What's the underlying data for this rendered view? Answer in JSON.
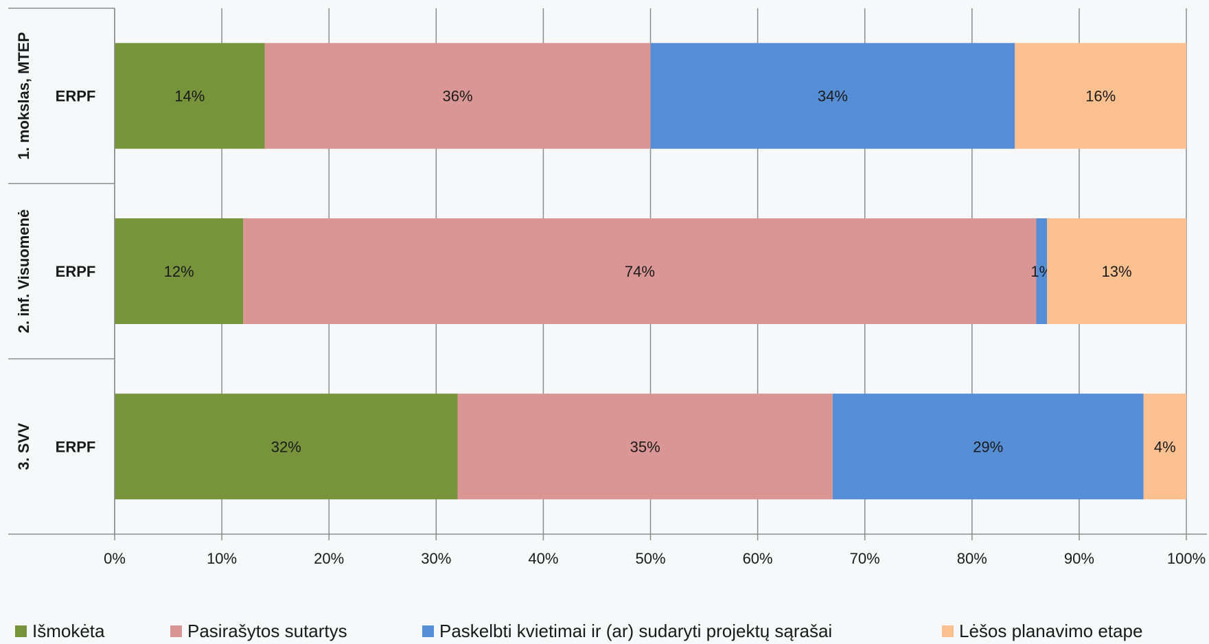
{
  "chart_data": {
    "type": "bar",
    "orientation": "horizontal",
    "stacked": "percent",
    "categories": [
      {
        "group": "1. mokslas, MTEP",
        "label": "ERPF"
      },
      {
        "group": "2. inf. Visuomenė",
        "label": "ERPF"
      },
      {
        "group": "3. SVV",
        "label": "ERPF"
      }
    ],
    "series": [
      {
        "name": "Išmokėta",
        "color": "#77933c",
        "values": [
          14,
          12,
          32
        ],
        "labels": [
          "14%",
          "12%",
          "32%"
        ]
      },
      {
        "name": "Pasirašytos sutartys",
        "color": "#d99694",
        "values": [
          36,
          74,
          35
        ],
        "labels": [
          "36%",
          "74%",
          "35%"
        ]
      },
      {
        "name": "Paskelbti kvietimai ir (ar) sudaryti projektų sąrašai",
        "color": "#558ed5",
        "values": [
          34,
          1,
          29
        ],
        "labels": [
          "34%",
          "1%",
          "29%"
        ]
      },
      {
        "name": "Lėšos planavimo etape",
        "color": "#fac090",
        "values": [
          16,
          13,
          4
        ],
        "labels": [
          "16%",
          "13%",
          "4%"
        ]
      }
    ],
    "xlim": [
      0,
      100
    ],
    "xticks": [
      "0%",
      "10%",
      "20%",
      "30%",
      "40%",
      "50%",
      "60%",
      "70%",
      "80%",
      "90%",
      "100%"
    ],
    "grid": true,
    "legend_position": "bottom"
  }
}
